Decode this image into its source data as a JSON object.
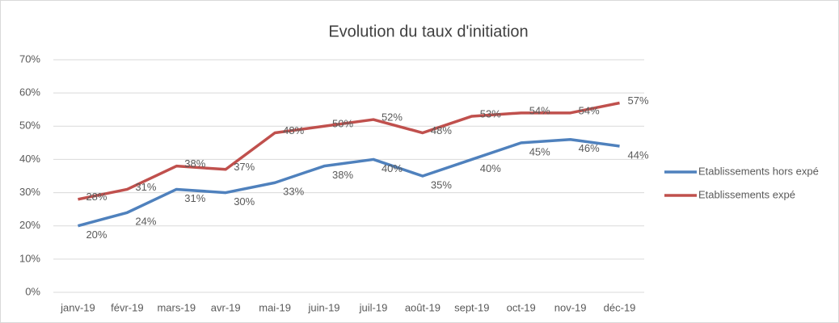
{
  "chart_data": {
    "type": "line",
    "title": "Evolution du taux d'initiation",
    "categories": [
      "janv-19",
      "févr-19",
      "mars-19",
      "avr-19",
      "mai-19",
      "juin-19",
      "juil-19",
      "août-19",
      "sept-19",
      "oct-19",
      "nov-19",
      "déc-19"
    ],
    "series": [
      {
        "name": "Etablissements hors expé",
        "color": "#4f81bd",
        "values": [
          20,
          24,
          31,
          30,
          33,
          38,
          40,
          35,
          40,
          45,
          46,
          44
        ],
        "value_labels": [
          "20%",
          "24%",
          "31%",
          "30%",
          "33%",
          "38%",
          "40%",
          "35%",
          "40%",
          "45%",
          "46%",
          "44%"
        ]
      },
      {
        "name": "Etablissements expé",
        "color": "#c0504d",
        "values": [
          28,
          31,
          38,
          37,
          48,
          50,
          52,
          48,
          53,
          54,
          54,
          57
        ],
        "value_labels": [
          "28%",
          "31%",
          "38%",
          "37%",
          "48%",
          "50%",
          "52%",
          "48%",
          "53%",
          "54%",
          "54%",
          "57%"
        ]
      }
    ],
    "ylim": [
      0,
      70
    ],
    "yticks": [
      {
        "value": 0,
        "label": "0%"
      },
      {
        "value": 10,
        "label": "10%"
      },
      {
        "value": 20,
        "label": "20%"
      },
      {
        "value": 30,
        "label": "30%"
      },
      {
        "value": 40,
        "label": "40%"
      },
      {
        "value": 50,
        "label": "50%"
      },
      {
        "value": 60,
        "label": "60%"
      },
      {
        "value": 70,
        "label": "70%"
      }
    ],
    "grid": true,
    "legend": "right"
  }
}
